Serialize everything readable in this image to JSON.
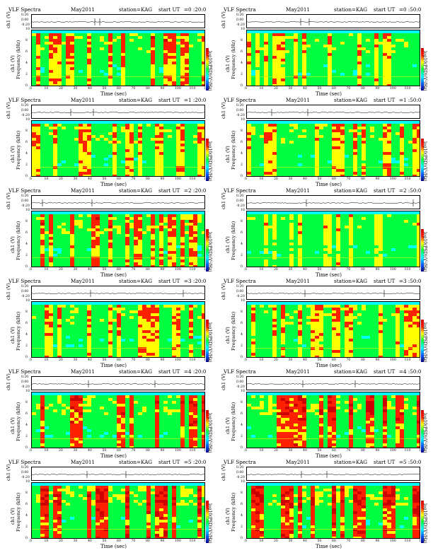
{
  "chart_data": {
    "type": "heatmap",
    "header": {
      "title": "VLF Spectra",
      "date": "May2011",
      "station": "station=KAG",
      "start_prefix": "start  UT"
    },
    "ts_ylabel": "ch1 (V)",
    "ts_ticks": [
      "0.20",
      "0.00",
      "-0.20"
    ],
    "ylabel": "Frequency (kHz)",
    "ylim": [
      0,
      10
    ],
    "y_ticks": [
      "10",
      "8",
      "6",
      "4",
      "2",
      "0"
    ],
    "xlabel": "Time  (sec)",
    "xlim": [
      0,
      120
    ],
    "x_ticks": [
      "0",
      "10",
      "20",
      "30",
      "40",
      "50",
      "60",
      "70",
      "80",
      "90",
      "100",
      "110",
      "120"
    ],
    "colorbar_label": "log10(PSD)(V²/Hz)",
    "colorbar_colors": [
      "#000080",
      "#0060ff",
      "#00ffff",
      "#00ff40",
      "#ffff00",
      "#ff2000",
      "#cc0000"
    ],
    "panels": [
      {
        "start_ut": "=0 :20:0",
        "activity": 0.55
      },
      {
        "start_ut": "=0 :50:0",
        "activity": 0.45
      },
      {
        "start_ut": "=1 :20:0",
        "activity": 0.5
      },
      {
        "start_ut": "=1 :50:0",
        "activity": 0.5
      },
      {
        "start_ut": "=2 :20:0",
        "activity": 0.6
      },
      {
        "start_ut": "=2 :50:0",
        "activity": 0.35
      },
      {
        "start_ut": "=3 :20:0",
        "activity": 0.5
      },
      {
        "start_ut": "=3 :50:0",
        "activity": 0.5
      },
      {
        "start_ut": "=4 :20:0",
        "activity": 0.7
      },
      {
        "start_ut": "=4 :50:0",
        "activity": 0.75
      },
      {
        "start_ut": "=5 :20:0",
        "activity": 0.8
      },
      {
        "start_ut": "=5 :50:0",
        "activity": 0.8
      }
    ]
  }
}
